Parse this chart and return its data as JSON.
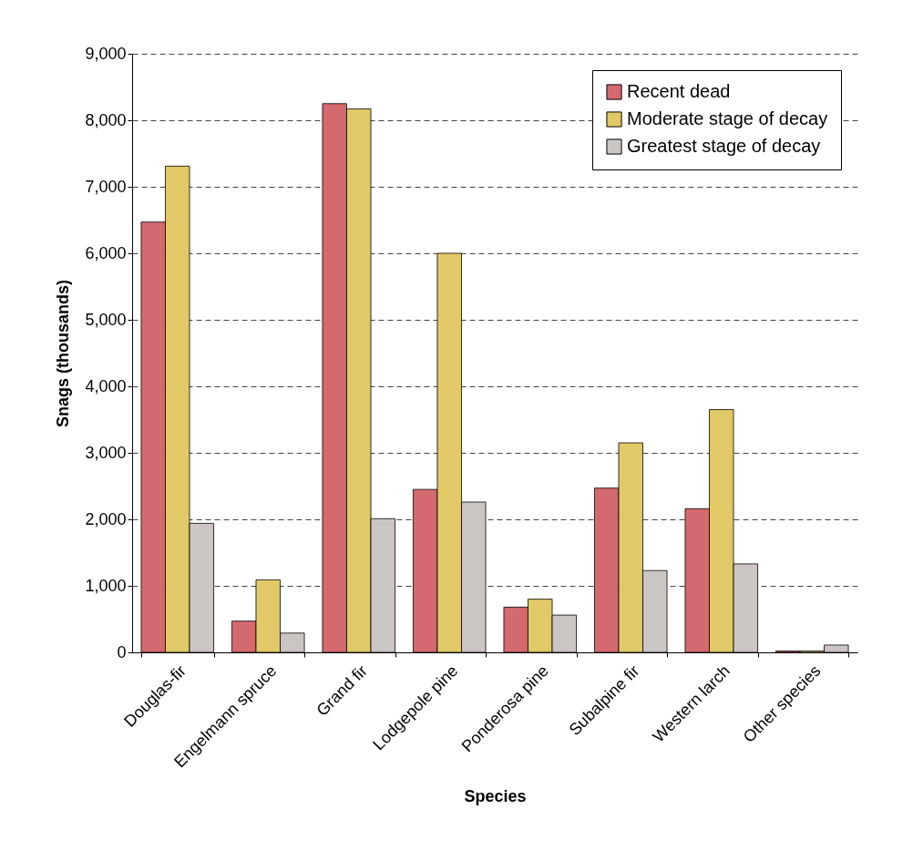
{
  "chart_data": {
    "type": "bar",
    "xlabel": "Species",
    "ylabel": "Snags (thousands)",
    "categories": [
      "Douglas-fir",
      "Engelmann spruce",
      "Grand fir",
      "Lodgepole pine",
      "Ponderosa pine",
      "Subalpine fir",
      "Western larch",
      "Other species"
    ],
    "series": [
      {
        "name": "Recent dead",
        "color": "#d4696f",
        "values": [
          6470,
          470,
          8250,
          2450,
          680,
          2470,
          2160,
          20
        ]
      },
      {
        "name": "Moderate stage of decay",
        "color": "#e0c966",
        "values": [
          7310,
          1090,
          8170,
          6000,
          800,
          3150,
          3650,
          20
        ]
      },
      {
        "name": "Greatest stage of decay",
        "color": "#cbc6c3",
        "values": [
          1940,
          290,
          2010,
          2260,
          560,
          1230,
          1330,
          110
        ]
      }
    ],
    "ylim": [
      0,
      9000
    ],
    "yticks": [
      {
        "value": 0,
        "label": "0"
      },
      {
        "value": 1000,
        "label": "1,000"
      },
      {
        "value": 2000,
        "label": "2,000"
      },
      {
        "value": 3000,
        "label": "3,000"
      },
      {
        "value": 4000,
        "label": "4,000"
      },
      {
        "value": 5000,
        "label": "5,000"
      },
      {
        "value": 6000,
        "label": "6,000"
      },
      {
        "value": 7000,
        "label": "7,000"
      },
      {
        "value": 8000,
        "label": "8,000"
      },
      {
        "value": 9000,
        "label": "9,000"
      }
    ],
    "grid": "y",
    "legend": "top right"
  }
}
